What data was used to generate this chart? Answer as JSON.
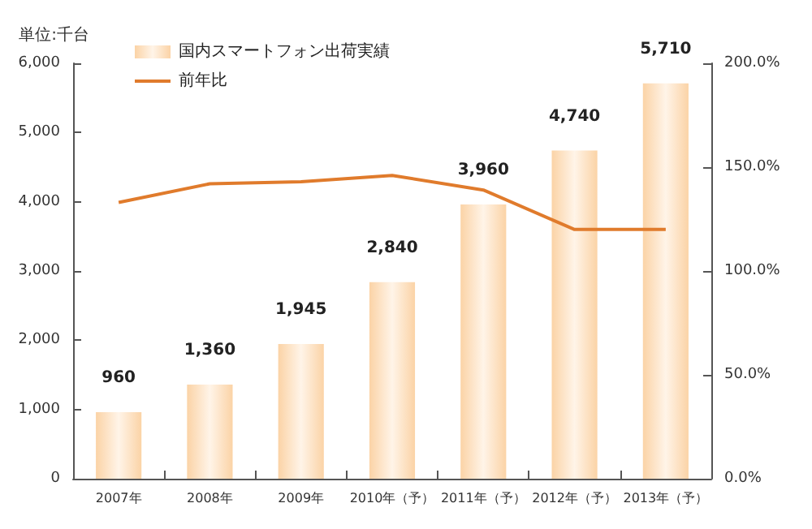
{
  "chart_data": {
    "type": "bar",
    "ylabel": "単位:千台",
    "categories": [
      "2007年",
      "2008年",
      "2009年",
      "2010年（予）",
      "2011年（予）",
      "2012年（予）",
      "2013年（予）"
    ],
    "series": [
      {
        "name": "国内スマートフォン出荷実績",
        "color": "#fbd3a6",
        "values": [
          960,
          1360,
          1945,
          2840,
          3960,
          4740,
          5710
        ],
        "value_labels": [
          "960",
          "1,360",
          "1,945",
          "2,840",
          "3,960",
          "4,740",
          "5,710"
        ]
      },
      {
        "name": "前年比",
        "type": "line",
        "axis": "y2",
        "color": "#e07b2c",
        "values": [
          133,
          142,
          143,
          146,
          139,
          120,
          120
        ]
      }
    ],
    "ylim": [
      0,
      6000
    ],
    "yticks": [
      {
        "value": 0,
        "label": "0"
      },
      {
        "value": 1000,
        "label": "1,000"
      },
      {
        "value": 2000,
        "label": "2,000"
      },
      {
        "value": 3000,
        "label": "3,000"
      },
      {
        "value": 4000,
        "label": "4,000"
      },
      {
        "value": 5000,
        "label": "5,000"
      },
      {
        "value": 6000,
        "label": "6,000"
      }
    ],
    "y2lim": [
      0,
      200
    ],
    "y2ticks": [
      {
        "value": 0,
        "label": "0.0%"
      },
      {
        "value": 50,
        "label": "50.0%"
      },
      {
        "value": 100,
        "label": "100.0%"
      },
      {
        "value": 150,
        "label": "150.0%"
      },
      {
        "value": 200,
        "label": "200.0%"
      }
    ],
    "legend": "top left",
    "marker": "none",
    "grid": false
  }
}
